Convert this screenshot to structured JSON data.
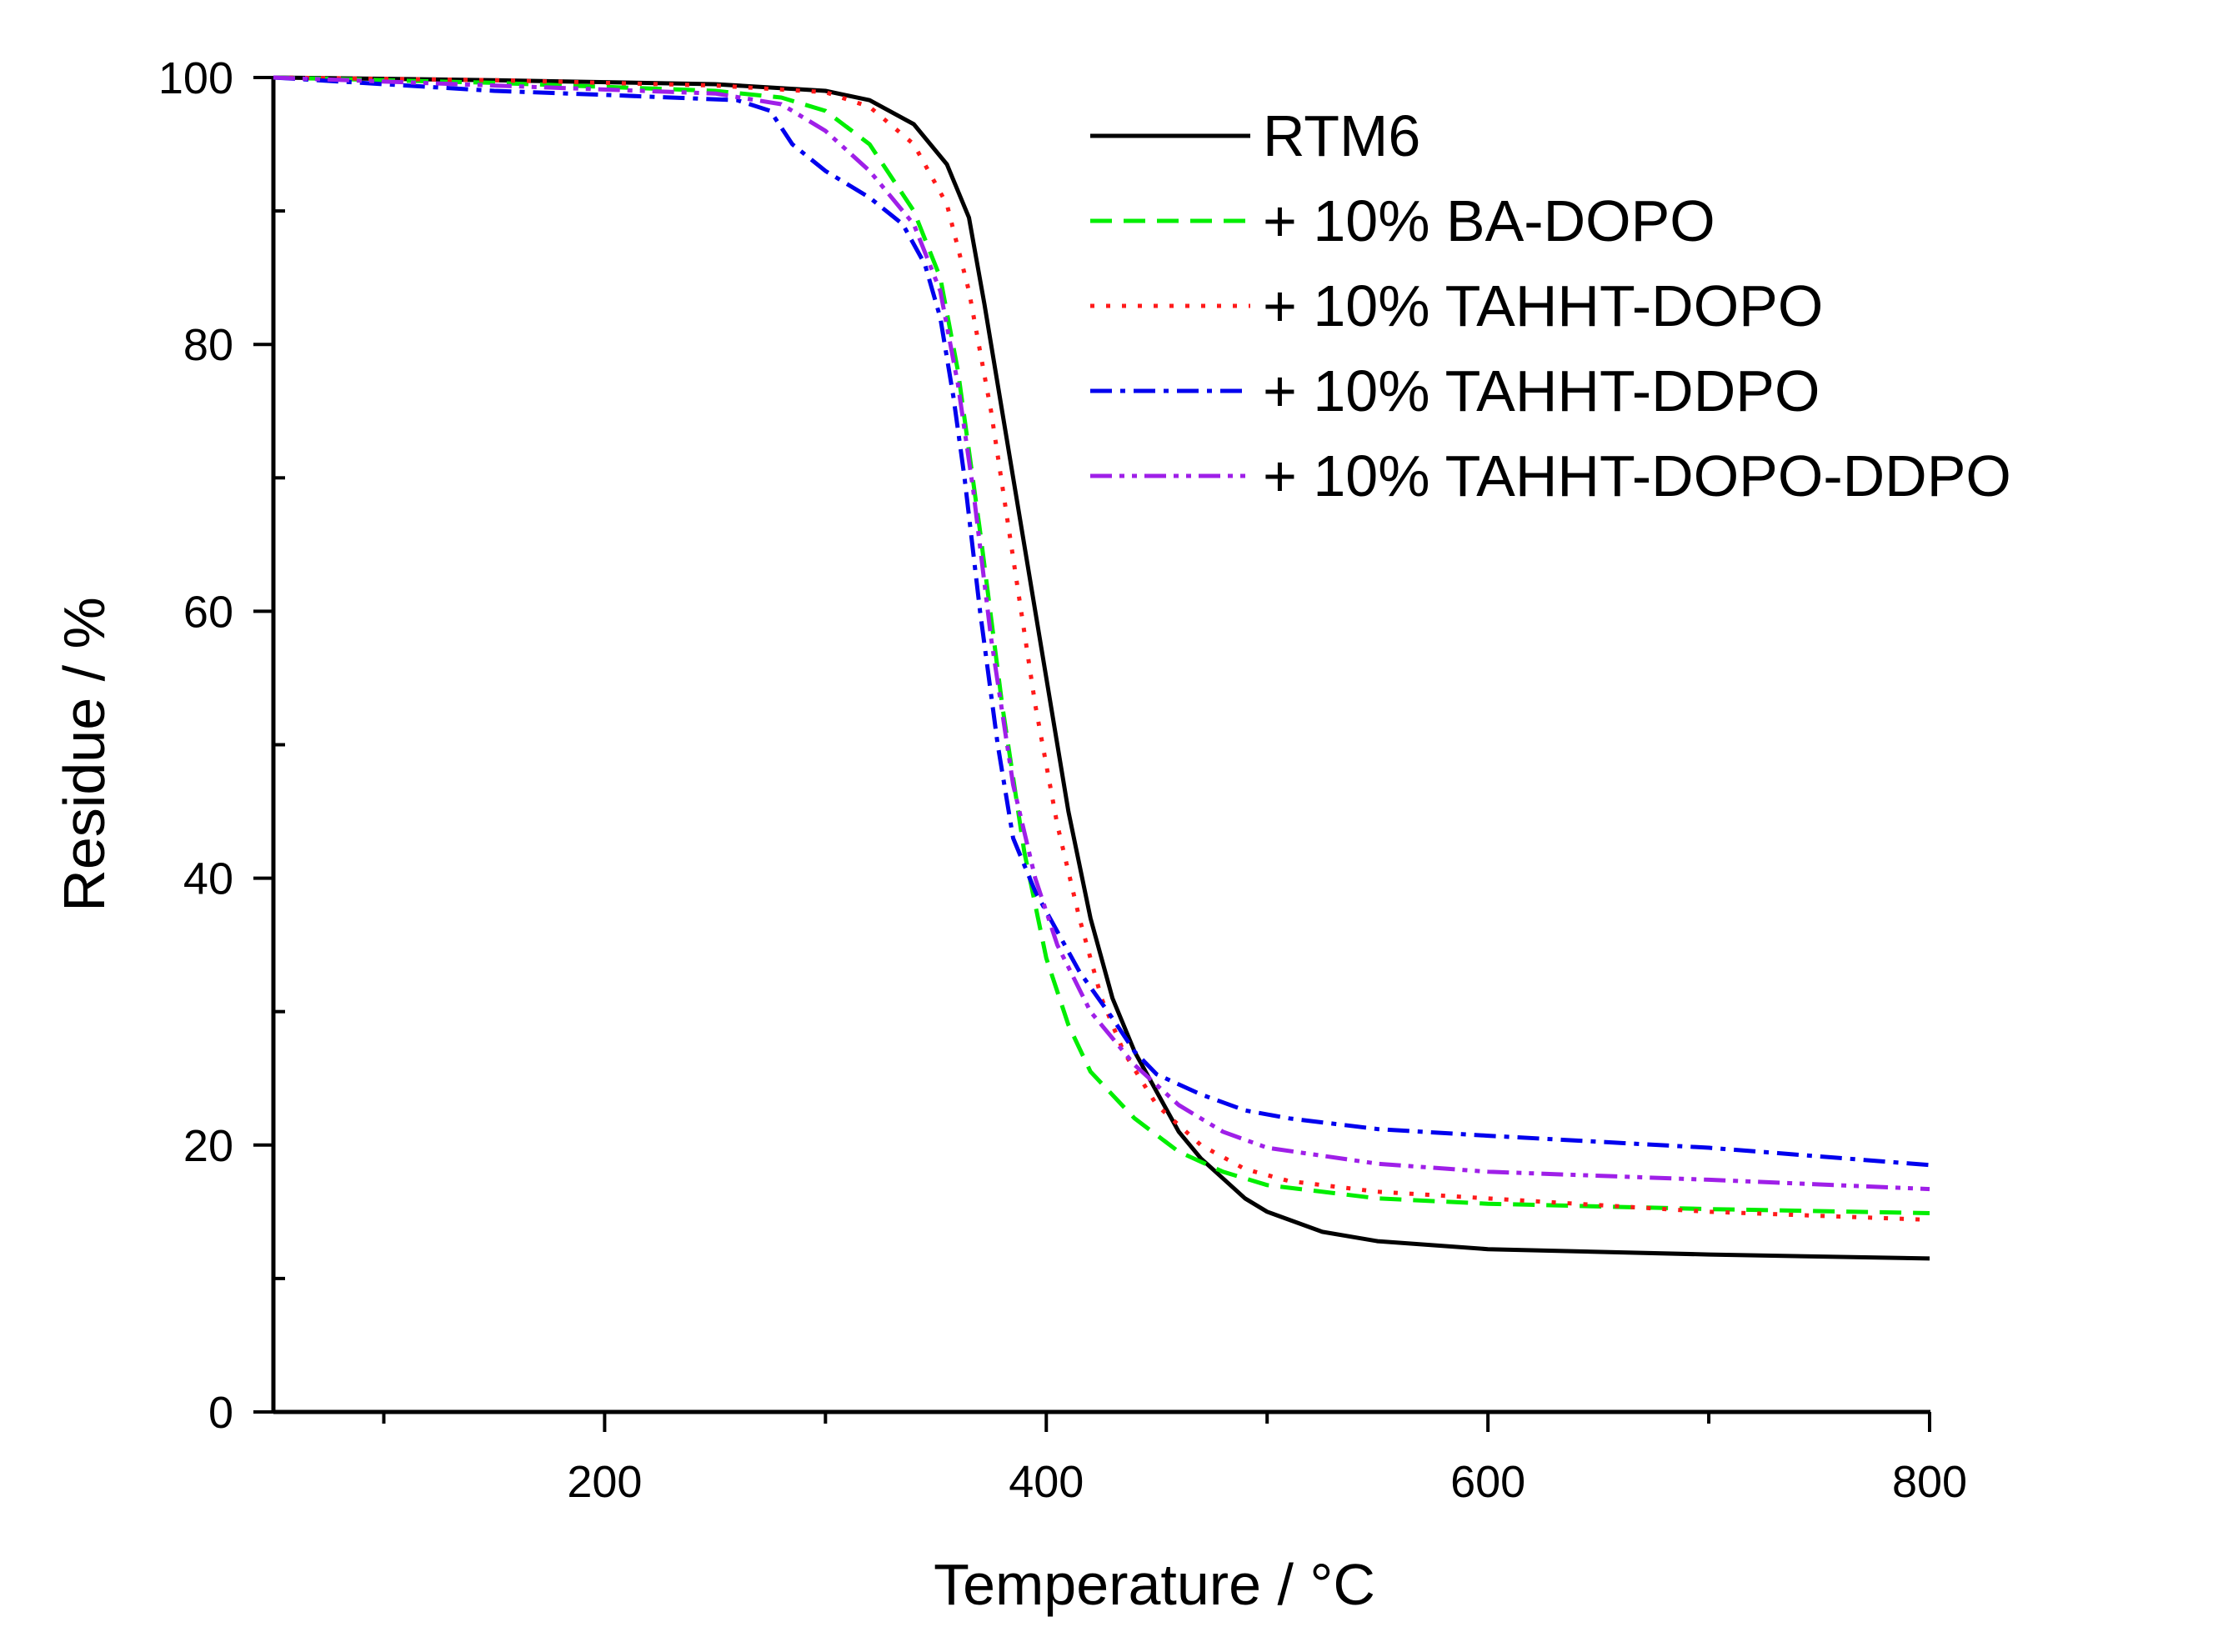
{
  "chart_data": {
    "type": "line",
    "title": "",
    "xlabel": "Temperature / °C",
    "ylabel": "Residue / %",
    "xlim": [
      50,
      800
    ],
    "ylim": [
      0,
      100
    ],
    "x_ticks": [
      200,
      400,
      600,
      800
    ],
    "x_minor_ticks": [
      100,
      300,
      500,
      700
    ],
    "y_ticks": [
      0,
      20,
      40,
      60,
      80,
      100
    ],
    "y_minor_ticks": [
      10,
      30,
      50,
      70,
      90
    ],
    "grid": false,
    "legend_position": "top-right",
    "series": [
      {
        "name": "RTM6",
        "color": "#000000",
        "dash": "solid",
        "points": [
          [
            50,
            100
          ],
          [
            150,
            99.8
          ],
          [
            250,
            99.5
          ],
          [
            300,
            99.0
          ],
          [
            320,
            98.3
          ],
          [
            340,
            96.5
          ],
          [
            355,
            93.5
          ],
          [
            365,
            89.5
          ],
          [
            372,
            83
          ],
          [
            380,
            75
          ],
          [
            390,
            65
          ],
          [
            400,
            55
          ],
          [
            410,
            45
          ],
          [
            420,
            37
          ],
          [
            430,
            31
          ],
          [
            440,
            27
          ],
          [
            450,
            24
          ],
          [
            460,
            21
          ],
          [
            470,
            19
          ],
          [
            480,
            17.5
          ],
          [
            490,
            16
          ],
          [
            500,
            15
          ],
          [
            525,
            13.5
          ],
          [
            550,
            12.8
          ],
          [
            600,
            12.2
          ],
          [
            700,
            11.8
          ],
          [
            800,
            11.5
          ]
        ]
      },
      {
        "name": "+ 10% BA-DOPO",
        "color": "#00ee00",
        "dash": "dashed",
        "points": [
          [
            50,
            100
          ],
          [
            150,
            99.6
          ],
          [
            250,
            99.0
          ],
          [
            280,
            98.5
          ],
          [
            300,
            97.5
          ],
          [
            320,
            95
          ],
          [
            340,
            90
          ],
          [
            352,
            85
          ],
          [
            360,
            78
          ],
          [
            370,
            66
          ],
          [
            380,
            53
          ],
          [
            390,
            42
          ],
          [
            400,
            34
          ],
          [
            410,
            29
          ],
          [
            420,
            25.5
          ],
          [
            440,
            22
          ],
          [
            460,
            19.5
          ],
          [
            480,
            18
          ],
          [
            500,
            17
          ],
          [
            550,
            16
          ],
          [
            600,
            15.6
          ],
          [
            700,
            15.2
          ],
          [
            800,
            14.9
          ]
        ]
      },
      {
        "name": "+ 10% TAHHT-DOPO",
        "color": "#ff1a1a",
        "dash": "dotted",
        "points": [
          [
            50,
            100
          ],
          [
            150,
            99.8
          ],
          [
            250,
            99.4
          ],
          [
            300,
            98.9
          ],
          [
            320,
            97.8
          ],
          [
            340,
            95
          ],
          [
            355,
            90.5
          ],
          [
            365,
            84
          ],
          [
            375,
            75
          ],
          [
            385,
            64
          ],
          [
            395,
            53
          ],
          [
            405,
            44
          ],
          [
            415,
            37
          ],
          [
            425,
            31
          ],
          [
            435,
            27
          ],
          [
            450,
            23
          ],
          [
            470,
            20
          ],
          [
            490,
            18.2
          ],
          [
            510,
            17.3
          ],
          [
            550,
            16.5
          ],
          [
            600,
            16
          ],
          [
            700,
            15
          ],
          [
            800,
            14.4
          ]
        ]
      },
      {
        "name": "+ 10% TAHHT-DDPO",
        "color": "#0000ee",
        "dash": "dashdot",
        "points": [
          [
            50,
            100
          ],
          [
            100,
            99.5
          ],
          [
            150,
            99.0
          ],
          [
            200,
            98.7
          ],
          [
            260,
            98.3
          ],
          [
            275,
            97.5
          ],
          [
            285,
            95
          ],
          [
            300,
            93
          ],
          [
            320,
            91
          ],
          [
            335,
            89
          ],
          [
            345,
            86
          ],
          [
            352,
            82
          ],
          [
            358,
            76
          ],
          [
            363,
            70
          ],
          [
            370,
            60
          ],
          [
            378,
            50
          ],
          [
            385,
            43
          ],
          [
            395,
            39
          ],
          [
            405,
            36
          ],
          [
            415,
            33
          ],
          [
            430,
            29.5
          ],
          [
            440,
            27
          ],
          [
            450,
            25.3
          ],
          [
            470,
            23.8
          ],
          [
            490,
            22.6
          ],
          [
            510,
            22
          ],
          [
            550,
            21.2
          ],
          [
            600,
            20.7
          ],
          [
            700,
            19.8
          ],
          [
            800,
            18.5
          ]
        ]
      },
      {
        "name": "+ 10% TAHHT-DOPO-DDPO",
        "color": "#9f1fe8",
        "dash": "dashdotdot",
        "points": [
          [
            50,
            100
          ],
          [
            150,
            99.4
          ],
          [
            250,
            98.8
          ],
          [
            280,
            98
          ],
          [
            300,
            96
          ],
          [
            320,
            93
          ],
          [
            340,
            89
          ],
          [
            352,
            84
          ],
          [
            360,
            77
          ],
          [
            367,
            69
          ],
          [
            375,
            58
          ],
          [
            385,
            47
          ],
          [
            395,
            40
          ],
          [
            405,
            35
          ],
          [
            420,
            30
          ],
          [
            440,
            26
          ],
          [
            460,
            23
          ],
          [
            480,
            21
          ],
          [
            500,
            19.8
          ],
          [
            550,
            18.6
          ],
          [
            600,
            18
          ],
          [
            700,
            17.4
          ],
          [
            800,
            16.7
          ]
        ]
      }
    ]
  }
}
